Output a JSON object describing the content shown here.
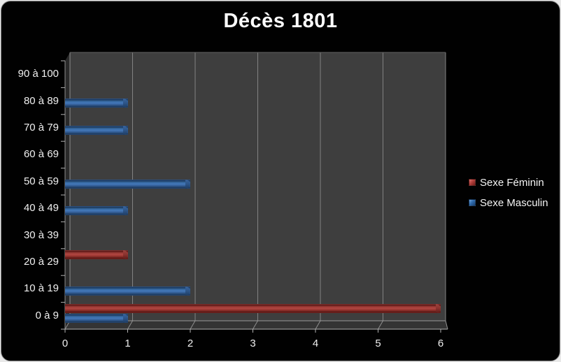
{
  "title": "Décès 1801",
  "colors": {
    "female": "#a73f3b",
    "male": "#3a6eb2",
    "panel_background": "#010101",
    "outer_background": "#e9e9e9",
    "wall": "#3e3e3e",
    "side_wall": "#2a2a2a",
    "floor": "#343434",
    "gridline": "#8a8a8a",
    "axis": "#b2b2b2",
    "text": "#f0f0f0"
  },
  "chart_data": {
    "type": "bar",
    "orientation": "horizontal",
    "style": "3d-cylinder",
    "title": "Décès 1801",
    "categories": [
      "0 à 9",
      "10 à 19",
      "20 à 29",
      "30 à 39",
      "40 à 49",
      "50 à 59",
      "60 à 69",
      "70 à 79",
      "80 à 89",
      "90 à 100"
    ],
    "series": [
      {
        "name": "Sexe Féminin",
        "color": "#a73f3b",
        "values": [
          6,
          0,
          1,
          0,
          0,
          0,
          0,
          0,
          0,
          0
        ]
      },
      {
        "name": "Sexe Masculin",
        "color": "#3a6eb2",
        "values": [
          1,
          2,
          0,
          0,
          1,
          2,
          0,
          1,
          1,
          0
        ]
      }
    ],
    "xlim": [
      0,
      6
    ],
    "x_ticks": [
      "0",
      "1",
      "2",
      "3",
      "4",
      "5",
      "6"
    ],
    "xlabel": "",
    "ylabel": "",
    "grid": "vertical",
    "legend_position": "right"
  }
}
